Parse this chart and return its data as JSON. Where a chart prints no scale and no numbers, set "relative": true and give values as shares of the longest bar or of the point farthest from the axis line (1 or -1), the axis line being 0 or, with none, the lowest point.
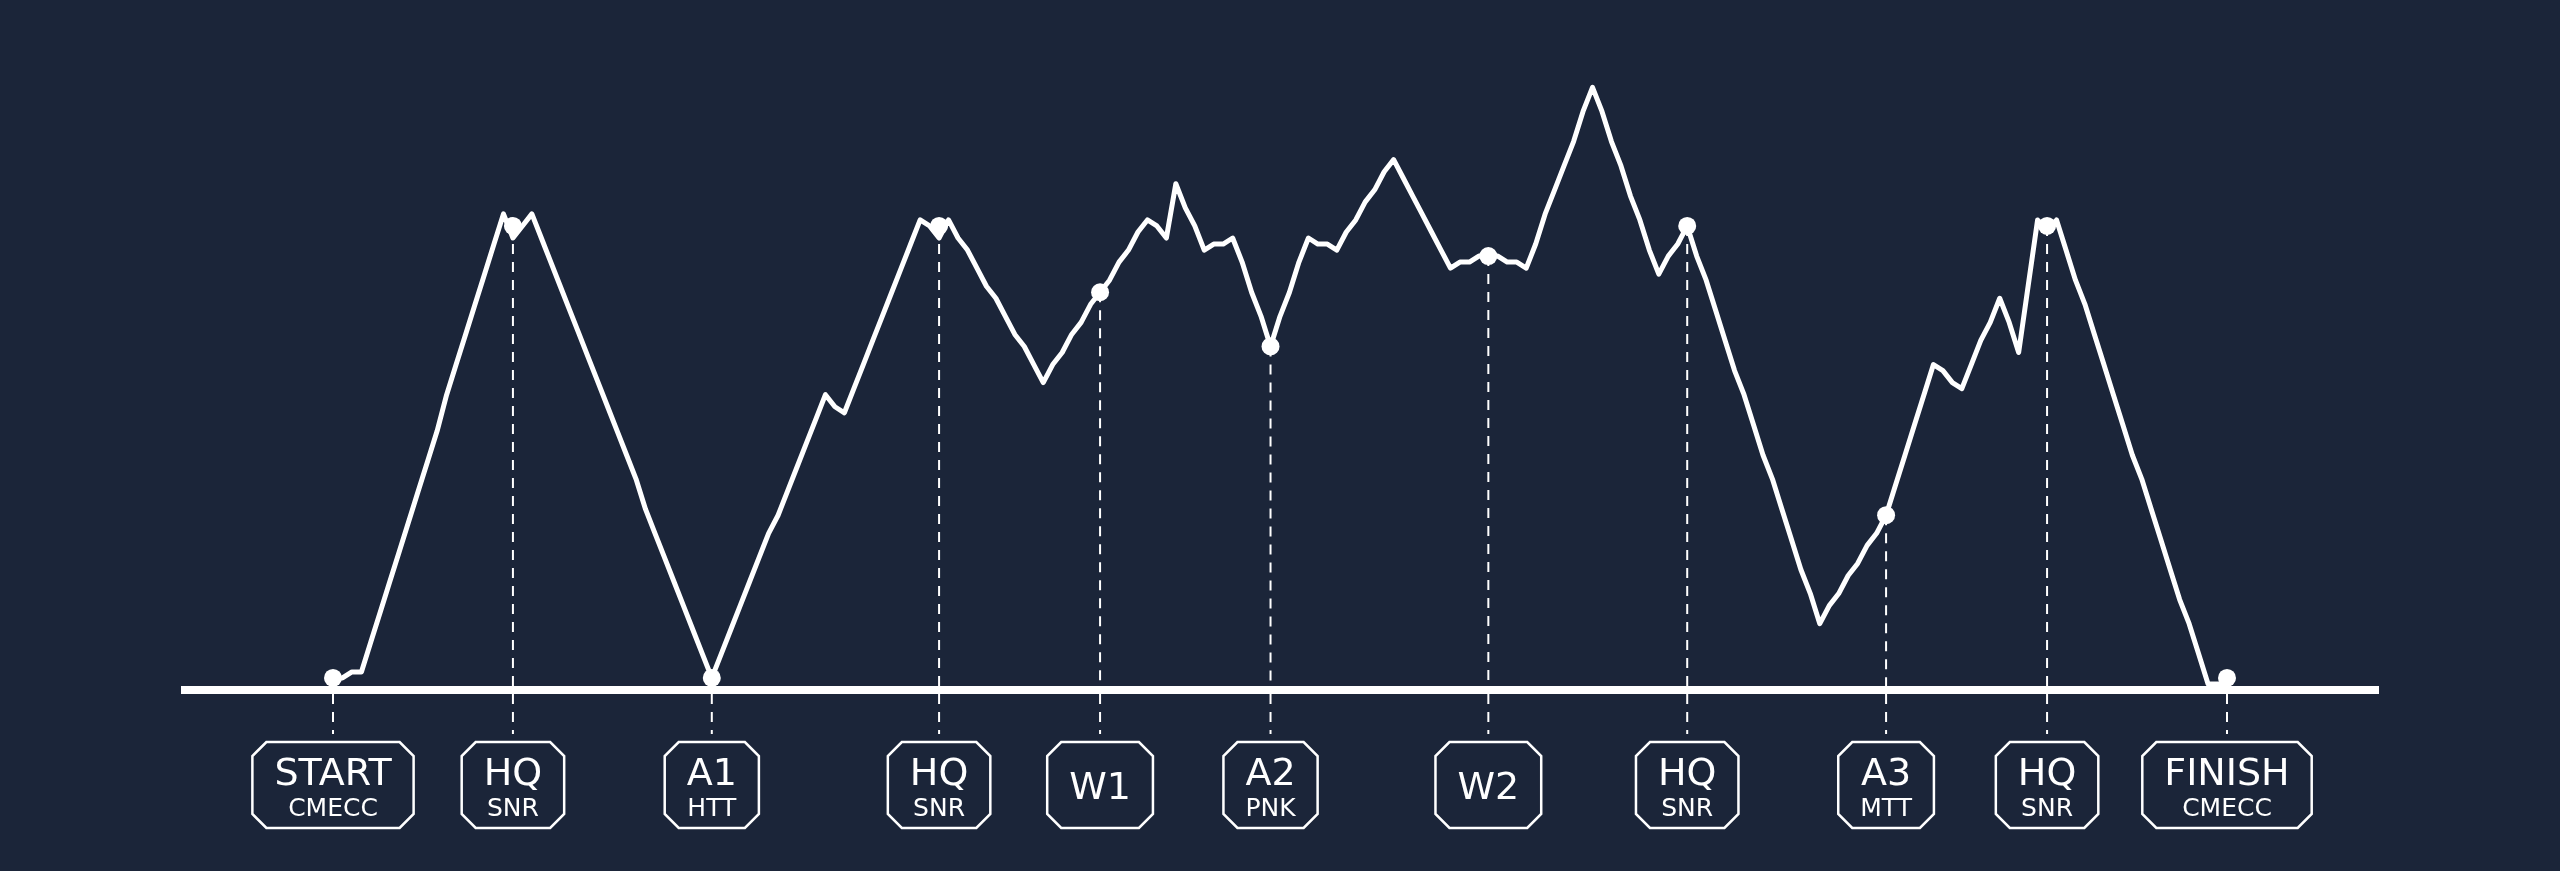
{
  "chart_data": {
    "type": "line",
    "relative": true,
    "legend": false,
    "categories": [
      "START\nCMECC",
      null,
      null,
      null,
      null,
      null,
      null,
      null,
      null,
      null,
      null,
      null,
      null,
      null,
      null,
      null,
      null,
      null,
      null,
      "HQ\nSNR",
      null,
      null,
      null,
      null,
      null,
      null,
      null,
      null,
      null,
      null,
      null,
      null,
      null,
      null,
      null,
      null,
      null,
      null,
      null,
      null,
      "A1\nHTT",
      null,
      null,
      null,
      null,
      null,
      null,
      null,
      null,
      null,
      null,
      null,
      null,
      null,
      null,
      null,
      null,
      null,
      null,
      null,
      null,
      null,
      null,
      null,
      "HQ\nSNR",
      null,
      null,
      null,
      null,
      null,
      null,
      null,
      null,
      null,
      null,
      null,
      null,
      null,
      null,
      null,
      null,
      "W1",
      null,
      null,
      null,
      null,
      null,
      null,
      null,
      null,
      null,
      null,
      null,
      null,
      null,
      null,
      null,
      null,
      null,
      "A2\nPNK",
      null,
      null,
      null,
      null,
      null,
      null,
      null,
      null,
      null,
      null,
      null,
      null,
      null,
      null,
      null,
      null,
      null,
      null,
      null,
      null,
      null,
      null,
      "W2",
      null,
      null,
      null,
      null,
      null,
      null,
      null,
      null,
      null,
      null,
      null,
      null,
      null,
      null,
      null,
      null,
      null,
      null,
      null,
      null,
      "HQ\nSNR",
      null,
      null,
      null,
      null,
      null,
      null,
      null,
      null,
      null,
      null,
      null,
      null,
      null,
      null,
      null,
      null,
      null,
      null,
      null,
      null,
      "A3\nMTT",
      null,
      null,
      null,
      null,
      null,
      null,
      null,
      null,
      null,
      null,
      null,
      null,
      null,
      null,
      null,
      null,
      "HQ\nSNR",
      null,
      null,
      null,
      null,
      null,
      null,
      null,
      null,
      null,
      null,
      null,
      null,
      null,
      null,
      null,
      null,
      null,
      null,
      "FINISH\nCMECC"
    ],
    "series": [
      {
        "color": "#ffffff",
        "line_style": "solid",
        "values": [
          0.02,
          0.02,
          0.03,
          0.03,
          0.08,
          0.13,
          0.18,
          0.23,
          0.28,
          0.33,
          0.38,
          0.43,
          0.49,
          0.54,
          0.59,
          0.64,
          0.69,
          0.74,
          0.79,
          0.75,
          0.77,
          0.79,
          0.75,
          0.71,
          0.67,
          0.63,
          0.59,
          0.55,
          0.51,
          0.47,
          0.43,
          0.39,
          0.35,
          0.3,
          0.26,
          0.22,
          0.18,
          0.14,
          0.1,
          0.06,
          0.02,
          0.06,
          0.1,
          0.14,
          0.18,
          0.22,
          0.26,
          0.29,
          0.33,
          0.37,
          0.41,
          0.45,
          0.49,
          0.47,
          0.46,
          0.5,
          0.54,
          0.58,
          0.62,
          0.66,
          0.7,
          0.74,
          0.78,
          0.77,
          0.75,
          0.78,
          0.75,
          0.73,
          0.7,
          0.67,
          0.65,
          0.62,
          0.59,
          0.57,
          0.54,
          0.51,
          0.54,
          0.56,
          0.59,
          0.61,
          0.64,
          0.66,
          0.68,
          0.71,
          0.73,
          0.76,
          0.78,
          0.77,
          0.75,
          0.84,
          0.8,
          0.77,
          0.73,
          0.74,
          0.74,
          0.75,
          0.71,
          0.66,
          0.62,
          0.57,
          0.62,
          0.66,
          0.71,
          0.75,
          0.74,
          0.74,
          0.73,
          0.76,
          0.78,
          0.81,
          0.83,
          0.86,
          0.88,
          0.85,
          0.82,
          0.79,
          0.76,
          0.73,
          0.7,
          0.71,
          0.71,
          0.72,
          0.72,
          0.72,
          0.71,
          0.71,
          0.7,
          0.74,
          0.79,
          0.83,
          0.87,
          0.91,
          0.96,
          1,
          0.96,
          0.91,
          0.87,
          0.82,
          0.78,
          0.73,
          0.69,
          0.72,
          0.74,
          0.77,
          0.72,
          0.68,
          0.63,
          0.58,
          0.53,
          0.49,
          0.44,
          0.39,
          0.35,
          0.3,
          0.25,
          0.2,
          0.16,
          0.11,
          0.14,
          0.16,
          0.19,
          0.21,
          0.24,
          0.26,
          0.29,
          0.34,
          0.39,
          0.44,
          0.49,
          0.54,
          0.53,
          0.51,
          0.5,
          0.54,
          0.58,
          0.61,
          0.65,
          0.61,
          0.56,
          0.67,
          0.78,
          0.76,
          0.78,
          0.73,
          0.68,
          0.64,
          0.59,
          0.54,
          0.49,
          0.44,
          0.39,
          0.35,
          0.3,
          0.25,
          0.2,
          0.15,
          0.11,
          0.06,
          0.01,
          0.01,
          0.01
        ]
      },
      {
        "type": "lollipop",
        "color": "#ffffff",
        "marker": "circle",
        "line_style": "dashed",
        "values": [
          0.02,
          null,
          null,
          null,
          null,
          null,
          null,
          null,
          null,
          null,
          null,
          null,
          null,
          null,
          null,
          null,
          null,
          null,
          null,
          0.77,
          null,
          null,
          null,
          null,
          null,
          null,
          null,
          null,
          null,
          null,
          null,
          null,
          null,
          null,
          null,
          null,
          null,
          null,
          null,
          null,
          0.02,
          null,
          null,
          null,
          null,
          null,
          null,
          null,
          null,
          null,
          null,
          null,
          null,
          null,
          null,
          null,
          null,
          null,
          null,
          null,
          null,
          null,
          null,
          null,
          0.77,
          null,
          null,
          null,
          null,
          null,
          null,
          null,
          null,
          null,
          null,
          null,
          null,
          null,
          null,
          null,
          null,
          0.66,
          null,
          null,
          null,
          null,
          null,
          null,
          null,
          null,
          null,
          null,
          null,
          null,
          null,
          null,
          null,
          null,
          null,
          0.57,
          null,
          null,
          null,
          null,
          null,
          null,
          null,
          null,
          null,
          null,
          null,
          null,
          null,
          null,
          null,
          null,
          null,
          null,
          null,
          null,
          null,
          null,
          0.72,
          null,
          null,
          null,
          null,
          null,
          null,
          null,
          null,
          null,
          null,
          null,
          null,
          null,
          null,
          null,
          null,
          null,
          null,
          null,
          null,
          0.77,
          null,
          null,
          null,
          null,
          null,
          null,
          null,
          null,
          null,
          null,
          null,
          null,
          null,
          null,
          null,
          null,
          null,
          null,
          null,
          null,
          0.29,
          null,
          null,
          null,
          null,
          null,
          null,
          null,
          null,
          null,
          null,
          null,
          null,
          null,
          null,
          null,
          null,
          0.77,
          null,
          null,
          null,
          null,
          null,
          null,
          null,
          null,
          null,
          null,
          null,
          null,
          null,
          null,
          null,
          null,
          null,
          null,
          0.02
        ]
      }
    ]
  }
}
